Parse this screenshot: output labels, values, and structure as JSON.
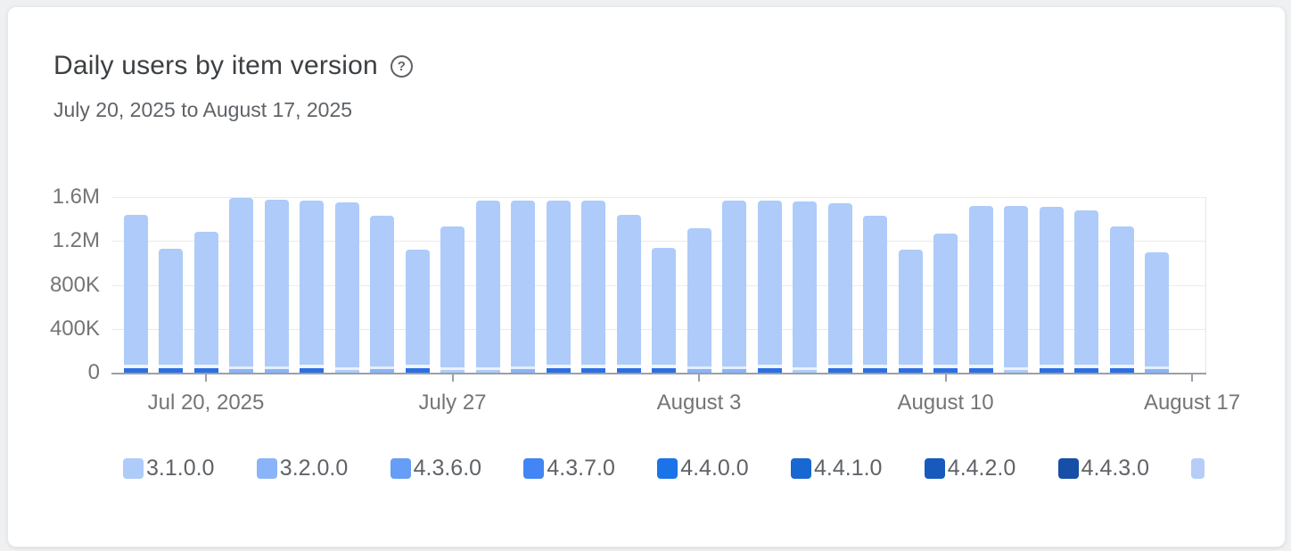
{
  "card": {
    "title": "Daily users by item version",
    "subtitle": "July 20, 2025 to August 17, 2025",
    "help_icon_glyph": "?"
  },
  "chart_data": {
    "type": "bar",
    "stacked": true,
    "title": "Daily users by item version",
    "date_range": "July 20, 2025 to August 17, 2025",
    "grid": true,
    "legend_position": "bottom",
    "bar_color": "#aecbfa",
    "y_axis": {
      "max": 1600000,
      "ticks": [
        {
          "label": "1.6M",
          "value": 1600000
        },
        {
          "label": "1.2M",
          "value": 1200000
        },
        {
          "label": "800K",
          "value": 800000
        },
        {
          "label": "400K",
          "value": 400000
        },
        {
          "label": "0",
          "value": 0
        }
      ]
    },
    "x_axis": {
      "ticks": [
        {
          "label": "Jul 20, 2025",
          "day_index": 2
        },
        {
          "label": "July 27",
          "day_index": 9
        },
        {
          "label": "August 3",
          "day_index": 16
        },
        {
          "label": "August 10",
          "day_index": 23
        },
        {
          "label": "August 17",
          "day_index": 30
        }
      ]
    },
    "accent_styles": {
      "strong": [
        {
          "color": "#2b6fe3",
          "h": 5
        },
        {
          "color": "#eef3fd",
          "h": 4
        }
      ],
      "light": [
        {
          "color": "#8ab4f8",
          "h": 4
        },
        {
          "color": "#e6eefd",
          "h": 3
        }
      ],
      "pale": [
        {
          "color": "#aecbfa",
          "h": 3
        },
        {
          "color": "#edf2fd",
          "h": 3
        }
      ]
    },
    "days": [
      {
        "date": "Jul 18",
        "total": 1440000,
        "accent": "strong"
      },
      {
        "date": "Jul 19",
        "total": 1130000,
        "accent": "strong"
      },
      {
        "date": "Jul 20",
        "total": 1280000,
        "accent": "strong"
      },
      {
        "date": "Jul 21",
        "total": 1590000,
        "accent": "light"
      },
      {
        "date": "Jul 22",
        "total": 1575000,
        "accent": "light"
      },
      {
        "date": "Jul 23",
        "total": 1570000,
        "accent": "strong"
      },
      {
        "date": "Jul 24",
        "total": 1555000,
        "accent": "pale"
      },
      {
        "date": "Jul 25",
        "total": 1430000,
        "accent": "light"
      },
      {
        "date": "Jul 26",
        "total": 1120000,
        "accent": "strong"
      },
      {
        "date": "Jul 27",
        "total": 1330000,
        "accent": "pale"
      },
      {
        "date": "Jul 28",
        "total": 1570000,
        "accent": "pale"
      },
      {
        "date": "Jul 29",
        "total": 1570000,
        "accent": "light"
      },
      {
        "date": "Jul 30",
        "total": 1570000,
        "accent": "strong"
      },
      {
        "date": "Jul 31",
        "total": 1570000,
        "accent": "strong"
      },
      {
        "date": "Aug 1",
        "total": 1440000,
        "accent": "strong"
      },
      {
        "date": "Aug 2",
        "total": 1140000,
        "accent": "strong"
      },
      {
        "date": "Aug 3",
        "total": 1320000,
        "accent": "light"
      },
      {
        "date": "Aug 4",
        "total": 1570000,
        "accent": "light"
      },
      {
        "date": "Aug 5",
        "total": 1570000,
        "accent": "strong"
      },
      {
        "date": "Aug 6",
        "total": 1560000,
        "accent": "pale"
      },
      {
        "date": "Aug 7",
        "total": 1540000,
        "accent": "strong"
      },
      {
        "date": "Aug 8",
        "total": 1430000,
        "accent": "strong"
      },
      {
        "date": "Aug 9",
        "total": 1120000,
        "accent": "strong"
      },
      {
        "date": "Aug 10",
        "total": 1270000,
        "accent": "strong"
      },
      {
        "date": "Aug 11",
        "total": 1520000,
        "accent": "strong"
      },
      {
        "date": "Aug 12",
        "total": 1520000,
        "accent": "pale"
      },
      {
        "date": "Aug 13",
        "total": 1510000,
        "accent": "strong"
      },
      {
        "date": "Aug 14",
        "total": 1480000,
        "accent": "strong"
      },
      {
        "date": "Aug 15",
        "total": 1330000,
        "accent": "strong"
      },
      {
        "date": "Aug 16",
        "total": 1100000,
        "accent": "light"
      }
    ]
  },
  "legend": {
    "items": [
      {
        "label": "3.1.0.0",
        "color": "#aecbfa"
      },
      {
        "label": "3.2.0.0",
        "color": "#8ab4f8"
      },
      {
        "label": "4.3.6.0",
        "color": "#669df6"
      },
      {
        "label": "4.3.7.0",
        "color": "#4285f4"
      },
      {
        "label": "4.4.0.0",
        "color": "#1a73e8"
      },
      {
        "label": "4.4.1.0",
        "color": "#1967d2"
      },
      {
        "label": "4.4.2.0",
        "color": "#185abc"
      },
      {
        "label": "4.4.3.0",
        "color": "#174ea6"
      },
      {
        "label": "",
        "color": "#b6cdf8",
        "partial": true,
        "swatch_width": 15
      }
    ]
  }
}
